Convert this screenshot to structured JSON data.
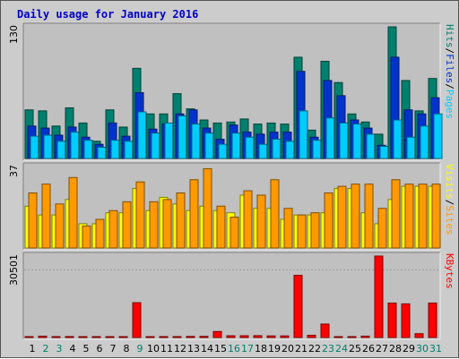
{
  "chart_data": {
    "type": "bar",
    "title": "Daily usage for January 2016",
    "x": [
      1,
      2,
      3,
      4,
      5,
      6,
      7,
      8,
      9,
      10,
      11,
      12,
      13,
      14,
      15,
      16,
      17,
      18,
      19,
      20,
      21,
      22,
      23,
      24,
      25,
      26,
      27,
      28,
      29,
      30,
      31
    ],
    "weekend_days": [
      2,
      3,
      9,
      16,
      17,
      23,
      24,
      30,
      31
    ],
    "panels": [
      {
        "id": "hits",
        "ymax_label": "130",
        "ymax": 130,
        "axis_labels": [
          {
            "text": "Hits",
            "color": "#00806e"
          },
          {
            "text": "Files",
            "color": "#0033cc"
          },
          {
            "text": "Pages",
            "color": "#00ccff"
          }
        ],
        "series": [
          {
            "name": "Hits",
            "color": "#00806e",
            "values": [
              48,
              47,
              32,
              50,
              35,
              17,
              48,
              31,
              89,
              44,
              44,
              64,
              49,
              38,
              35,
              36,
              39,
              34,
              35,
              34,
              100,
              28,
              96,
              75,
              44,
              36,
              24,
              130,
              77,
              47,
              79
            ]
          },
          {
            "name": "Files",
            "color": "#0033cc",
            "values": [
              32,
              30,
              23,
              31,
              21,
              14,
              35,
              22,
              65,
              29,
              34,
              44,
              48,
              30,
              19,
              33,
              26,
              24,
              26,
              26,
              86,
              21,
              77,
              62,
              38,
              30,
              13,
              100,
              48,
              44,
              60
            ]
          },
          {
            "name": "Pages",
            "color": "#00ccff",
            "values": [
              22,
              23,
              17,
              26,
              18,
              11,
              18,
              17,
              46,
              25,
              35,
              42,
              34,
              25,
              14,
              25,
              21,
              14,
              19,
              17,
              47,
              18,
              40,
              35,
              34,
              24,
              12,
              38,
              21,
              32,
              44
            ]
          }
        ]
      },
      {
        "id": "visits",
        "ymax_label": "37",
        "ymax": 37,
        "axis_labels": [
          {
            "text": "Visits",
            "color": "#ffff00"
          },
          {
            "text": "Sites",
            "color": "#ff9900"
          }
        ],
        "series": [
          {
            "name": "Visits",
            "color": "#ffff00",
            "values": [
              19,
              15,
              15,
              22,
              11,
              11,
              16,
              16,
              27,
              17,
              23,
              20,
              17,
              19,
              17,
              16,
              24,
              18,
              18,
              13,
              15,
              15,
              16,
              27,
              27,
              16,
              11,
              22,
              28,
              28,
              28
            ]
          },
          {
            "name": "Sites",
            "color": "#ff9900",
            "values": [
              25,
              29,
              20,
              32,
              10,
              13,
              17,
              21,
              30,
              21,
              22,
              25,
              31,
              36,
              19,
              14,
              26,
              24,
              31,
              18,
              15,
              16,
              25,
              28,
              29,
              29,
              18,
              31,
              29,
              29,
              29
            ]
          }
        ]
      },
      {
        "id": "kbytes",
        "ymax_label": "30501",
        "ymax": 30501,
        "axis_labels": [
          {
            "text": "KBytes",
            "color": "#ff0000"
          }
        ],
        "series": [
          {
            "name": "KBytes",
            "color": "#ff0000",
            "values": [
              220,
              510,
              330,
              370,
              330,
              340,
              210,
              300,
              13050,
              280,
              340,
              310,
              410,
              420,
              2250,
              660,
              670,
              690,
              600,
              610,
              23300,
              840,
              5040,
              330,
              290,
              520,
              30501,
              12900,
              12600,
              1440,
              12900
            ]
          }
        ]
      }
    ]
  }
}
